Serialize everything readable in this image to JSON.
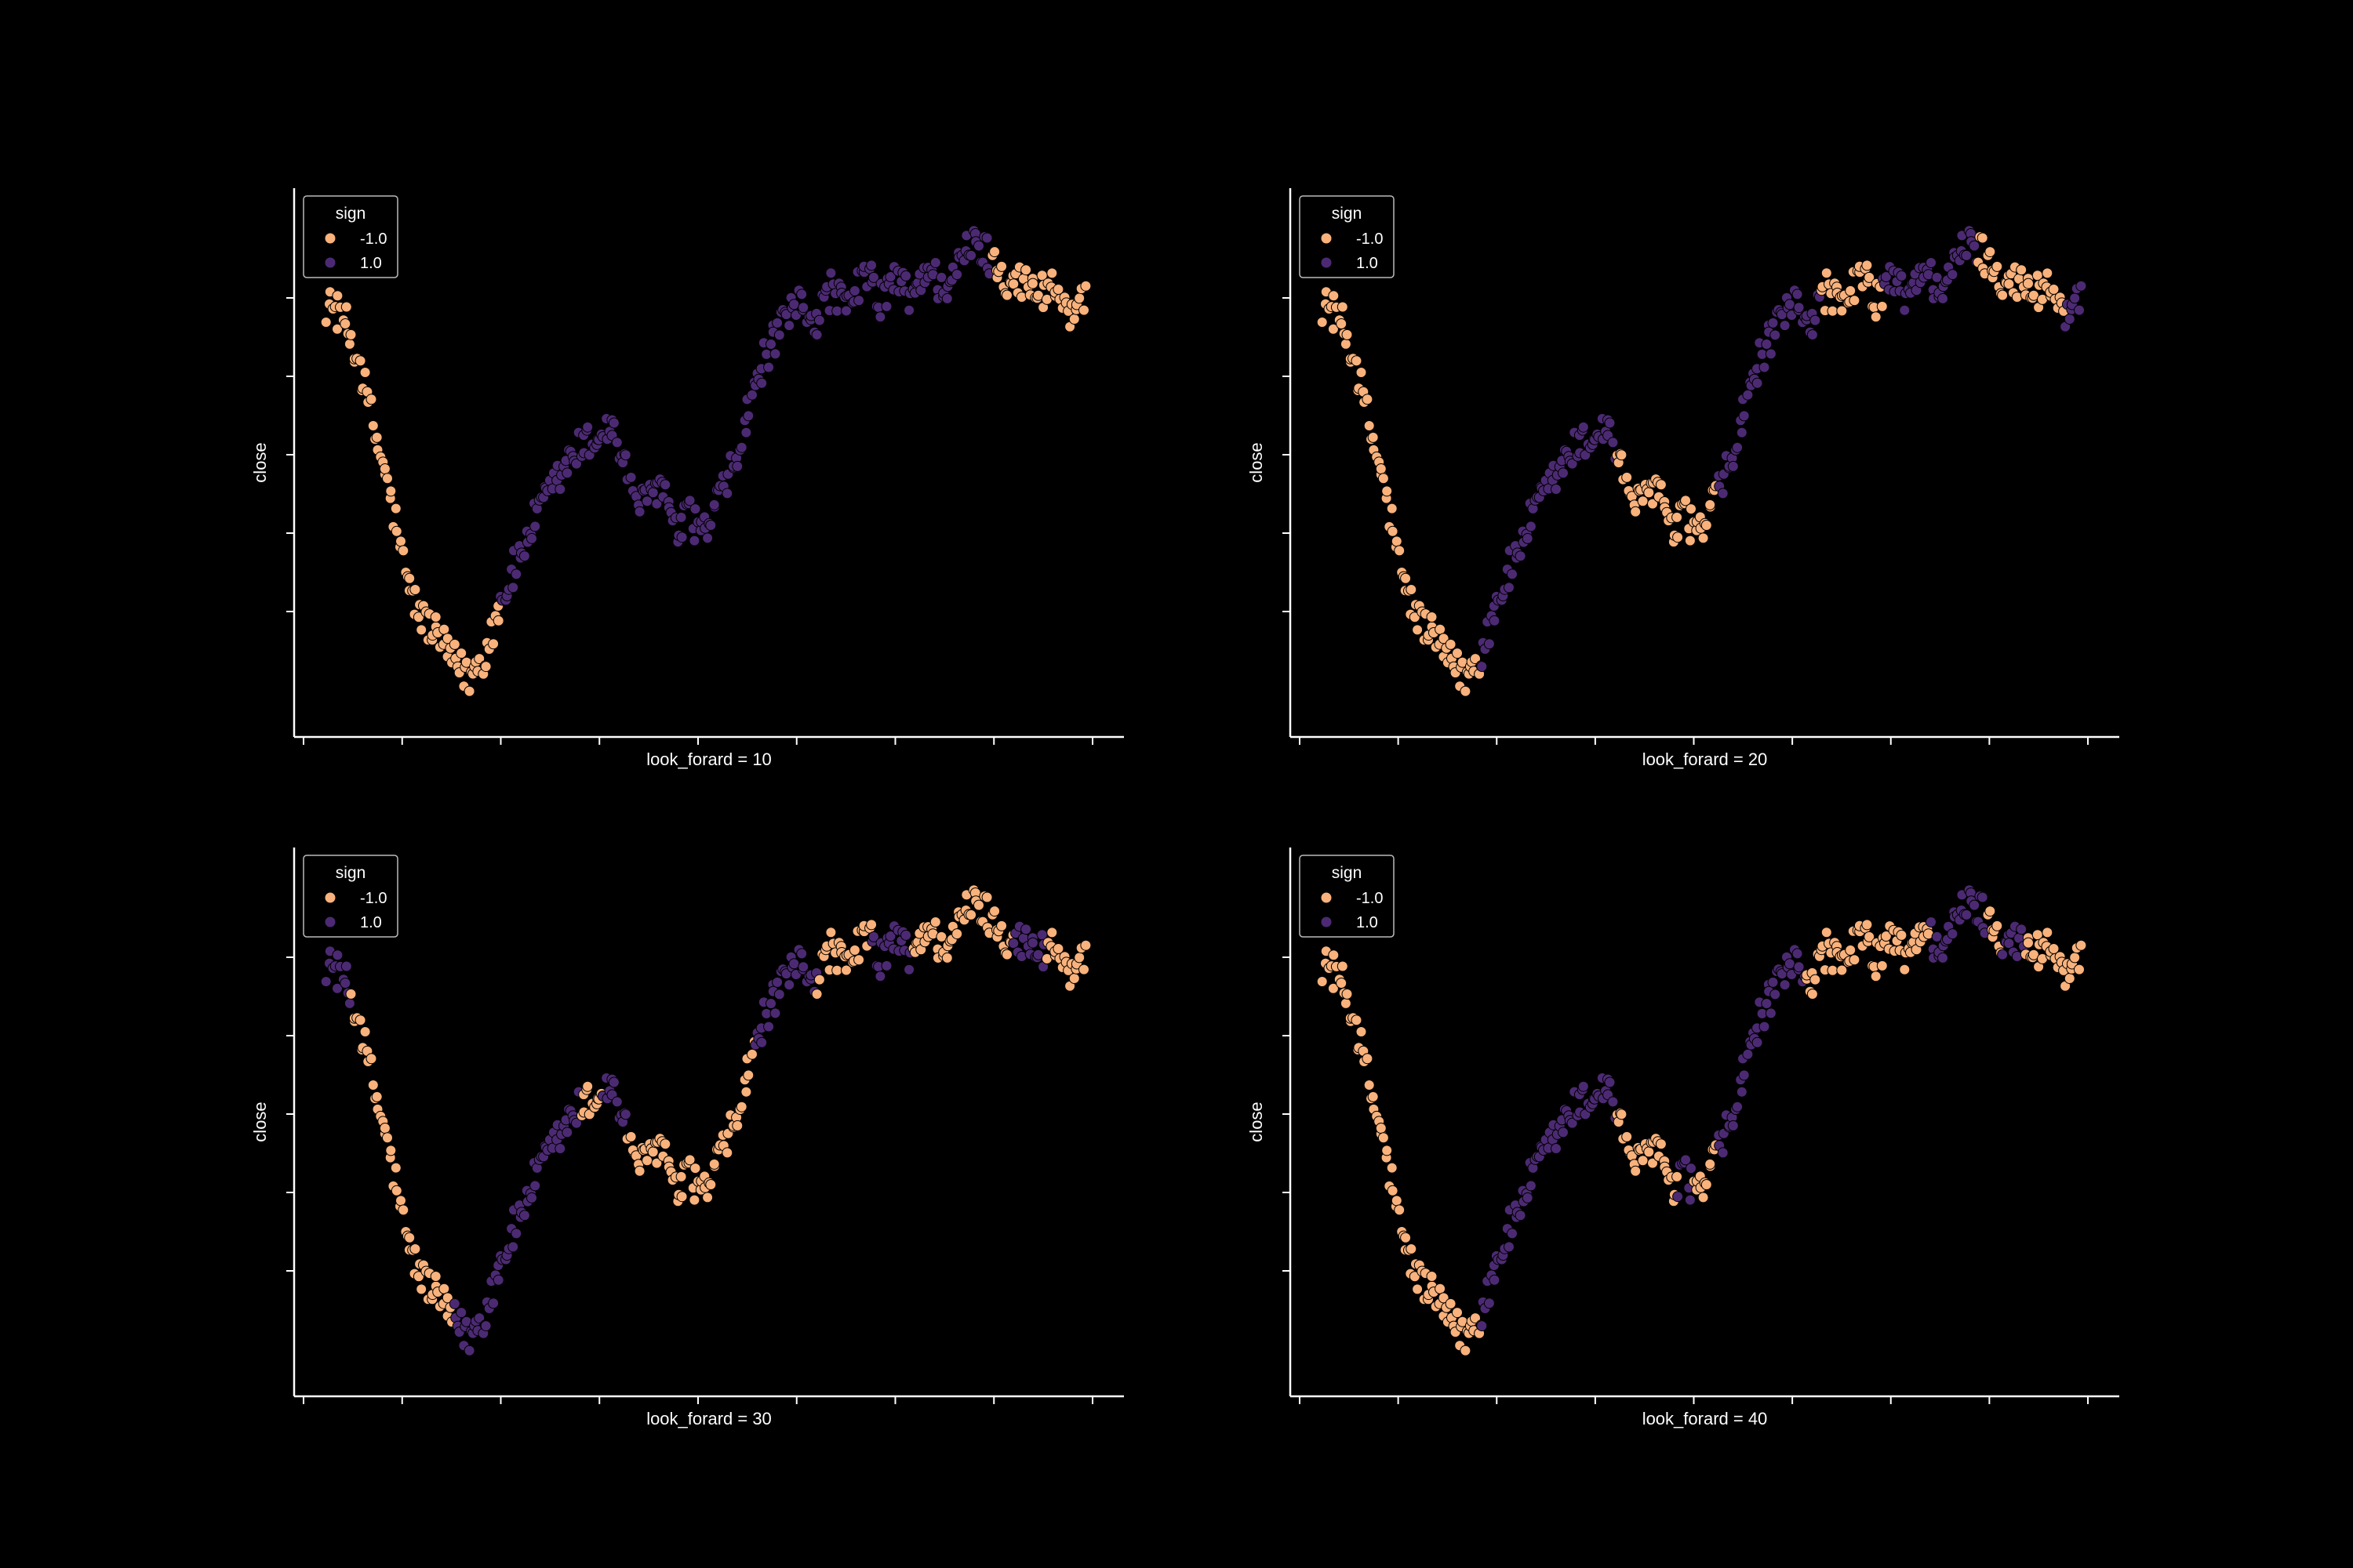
{
  "figure": {
    "background": "#000000",
    "foreground": "#ffffff"
  },
  "legend": {
    "title": "sign",
    "entries": [
      {
        "label": "-1.0",
        "color": "#f9b27c"
      },
      {
        "label": "1.0",
        "color": "#4c2a73"
      }
    ],
    "placement": "upper-left"
  },
  "chart_data": [
    {
      "type": "scatter",
      "xlabel": "look_forard = 10",
      "ylabel": "close",
      "grid": false,
      "tick_labels_visible": false,
      "xlim": [
        0,
        1000
      ],
      "ylim": [
        -0.3,
        1.3
      ],
      "x_ticks": [
        0,
        125,
        250,
        375,
        500,
        625,
        750,
        875,
        1000
      ],
      "y_ticks": [
        0,
        0.25,
        0.5,
        0.75,
        1.0
      ],
      "series": [
        {
          "name": "-1.0",
          "color": "#f9b27c",
          "ranges": [
            [
              30,
              250
            ],
            [
              870,
              990
            ]
          ]
        },
        {
          "name": "1.0",
          "color": "#4c2a73",
          "ranges": [
            [
              250,
              870
            ],
            [
              990,
              1000
            ]
          ]
        }
      ],
      "x": [
        30,
        50,
        70,
        90,
        110,
        130,
        150,
        170,
        190,
        210,
        230,
        250,
        270,
        290,
        310,
        330,
        350,
        370,
        390,
        400,
        410,
        430,
        450,
        460,
        470,
        490,
        510,
        530,
        550,
        570,
        590,
        610,
        630,
        650,
        670,
        690,
        710,
        730,
        750,
        770,
        790,
        810,
        830,
        850,
        870,
        890,
        910,
        930,
        950,
        970,
        990
      ],
      "y": [
        0.98,
        0.94,
        0.8,
        0.57,
        0.37,
        0.1,
        -0.02,
        -0.08,
        -0.16,
        -0.21,
        -0.14,
        0.03,
        0.15,
        0.28,
        0.36,
        0.45,
        0.52,
        0.55,
        0.6,
        0.52,
        0.44,
        0.33,
        0.41,
        0.37,
        0.24,
        0.3,
        0.25,
        0.37,
        0.49,
        0.7,
        0.84,
        0.91,
        0.99,
        0.93,
        1.04,
        0.95,
        1.09,
        0.99,
        1.06,
        1.0,
        1.1,
        1.03,
        1.1,
        1.18,
        1.13,
        1.07,
        1.05,
        1.02,
        1.04,
        0.96,
        0.98
      ]
    },
    {
      "type": "scatter",
      "xlabel": "look_forard = 20",
      "ylabel": "close",
      "grid": false,
      "tick_labels_visible": false,
      "xlim": [
        0,
        1000
      ],
      "ylim": [
        -0.3,
        1.3
      ],
      "x_ticks": [
        0,
        125,
        250,
        375,
        500,
        625,
        750,
        875,
        1000
      ],
      "y_ticks": [
        0,
        0.25,
        0.5,
        0.75,
        1.0
      ],
      "series": [
        {
          "name": "-1.0",
          "color": "#f9b27c",
          "ranges": [
            [
              30,
              230
            ],
            [
              400,
              530
            ],
            [
              660,
              740
            ],
            [
              860,
              970
            ],
            [
              990,
              1000
            ]
          ]
        },
        {
          "name": "1.0",
          "color": "#4c2a73",
          "ranges": [
            [
              230,
              400
            ],
            [
              530,
              660
            ],
            [
              740,
              860
            ],
            [
              970,
              990
            ]
          ]
        }
      ],
      "x": [
        30,
        50,
        70,
        90,
        110,
        130,
        150,
        170,
        190,
        210,
        230,
        250,
        270,
        290,
        310,
        330,
        350,
        370,
        390,
        400,
        410,
        430,
        450,
        460,
        470,
        490,
        510,
        530,
        550,
        570,
        590,
        610,
        630,
        650,
        670,
        690,
        710,
        730,
        750,
        770,
        790,
        810,
        830,
        850,
        870,
        890,
        910,
        930,
        950,
        970,
        990
      ],
      "y": [
        0.98,
        0.94,
        0.8,
        0.57,
        0.37,
        0.1,
        -0.02,
        -0.08,
        -0.16,
        -0.21,
        -0.14,
        0.03,
        0.15,
        0.28,
        0.36,
        0.45,
        0.52,
        0.55,
        0.6,
        0.52,
        0.44,
        0.33,
        0.41,
        0.37,
        0.24,
        0.3,
        0.25,
        0.37,
        0.49,
        0.7,
        0.84,
        0.91,
        0.99,
        0.93,
        1.04,
        0.95,
        1.09,
        0.99,
        1.06,
        1.0,
        1.1,
        1.03,
        1.1,
        1.18,
        1.13,
        1.07,
        1.05,
        1.02,
        1.04,
        0.96,
        0.98
      ]
    },
    {
      "type": "scatter",
      "xlabel": "look_forard = 30",
      "ylabel": "close",
      "grid": false,
      "tick_labels_visible": false,
      "xlim": [
        0,
        1000
      ],
      "ylim": [
        -0.3,
        1.3
      ],
      "x_ticks": [
        0,
        125,
        250,
        375,
        500,
        625,
        750,
        875,
        1000
      ],
      "y_ticks": [
        0,
        0.25,
        0.5,
        0.75,
        1.0
      ],
      "series": [
        {
          "name": "-1.0",
          "color": "#f9b27c",
          "ranges": [
            [
              60,
              190
            ],
            [
              350,
              380
            ],
            [
              410,
              570
            ],
            [
              650,
              720
            ],
            [
              770,
              900
            ],
            [
              940,
              990
            ]
          ]
        },
        {
          "name": "1.0",
          "color": "#4c2a73",
          "ranges": [
            [
              30,
              60
            ],
            [
              190,
              350
            ],
            [
              380,
              410
            ],
            [
              570,
              650
            ],
            [
              720,
              770
            ],
            [
              900,
              940
            ],
            [
              990,
              1000
            ]
          ]
        }
      ],
      "x": [
        30,
        50,
        70,
        90,
        110,
        130,
        150,
        170,
        190,
        210,
        230,
        250,
        270,
        290,
        310,
        330,
        350,
        370,
        390,
        400,
        410,
        430,
        450,
        460,
        470,
        490,
        510,
        530,
        550,
        570,
        590,
        610,
        630,
        650,
        670,
        690,
        710,
        730,
        750,
        770,
        790,
        810,
        830,
        850,
        870,
        890,
        910,
        930,
        950,
        970,
        990
      ],
      "y": [
        0.98,
        0.94,
        0.8,
        0.57,
        0.37,
        0.1,
        -0.02,
        -0.08,
        -0.16,
        -0.21,
        -0.14,
        0.03,
        0.15,
        0.28,
        0.36,
        0.45,
        0.52,
        0.55,
        0.6,
        0.52,
        0.44,
        0.33,
        0.41,
        0.37,
        0.24,
        0.3,
        0.25,
        0.37,
        0.49,
        0.7,
        0.84,
        0.91,
        0.99,
        0.93,
        1.04,
        0.95,
        1.09,
        0.99,
        1.06,
        1.0,
        1.1,
        1.03,
        1.1,
        1.18,
        1.13,
        1.07,
        1.05,
        1.02,
        1.04,
        0.96,
        0.98
      ]
    },
    {
      "type": "scatter",
      "xlabel": "look_forard = 40",
      "ylabel": "close",
      "grid": false,
      "tick_labels_visible": false,
      "xlim": [
        0,
        1000
      ],
      "ylim": [
        -0.3,
        1.3
      ],
      "x_ticks": [
        0,
        125,
        250,
        375,
        500,
        625,
        750,
        875,
        1000
      ],
      "y_ticks": [
        0,
        0.25,
        0.5,
        0.75,
        1.0
      ],
      "series": [
        {
          "name": "-1.0",
          "color": "#f9b27c",
          "ranges": [
            [
              30,
              230
            ],
            [
              400,
              480
            ],
            [
              500,
              530
            ],
            [
              640,
              800
            ],
            [
              870,
              890
            ],
            [
              920,
              990
            ]
          ]
        },
        {
          "name": "1.0",
          "color": "#4c2a73",
          "ranges": [
            [
              230,
              400
            ],
            [
              480,
              500
            ],
            [
              530,
              640
            ],
            [
              800,
              870
            ],
            [
              890,
              920
            ],
            [
              990,
              1000
            ]
          ]
        }
      ],
      "x": [
        30,
        50,
        70,
        90,
        110,
        130,
        150,
        170,
        190,
        210,
        230,
        250,
        270,
        290,
        310,
        330,
        350,
        370,
        390,
        400,
        410,
        430,
        450,
        460,
        470,
        490,
        510,
        530,
        550,
        570,
        590,
        610,
        630,
        650,
        670,
        690,
        710,
        730,
        750,
        770,
        790,
        810,
        830,
        850,
        870,
        890,
        910,
        930,
        950,
        970,
        990
      ],
      "y": [
        0.98,
        0.94,
        0.8,
        0.57,
        0.37,
        0.1,
        -0.02,
        -0.08,
        -0.16,
        -0.21,
        -0.14,
        0.03,
        0.15,
        0.28,
        0.36,
        0.45,
        0.52,
        0.55,
        0.6,
        0.52,
        0.44,
        0.33,
        0.41,
        0.37,
        0.24,
        0.3,
        0.25,
        0.37,
        0.49,
        0.7,
        0.84,
        0.91,
        0.99,
        0.93,
        1.04,
        0.95,
        1.09,
        0.99,
        1.06,
        1.0,
        1.1,
        1.03,
        1.1,
        1.18,
        1.13,
        1.07,
        1.05,
        1.02,
        1.04,
        0.96,
        0.98
      ]
    }
  ]
}
